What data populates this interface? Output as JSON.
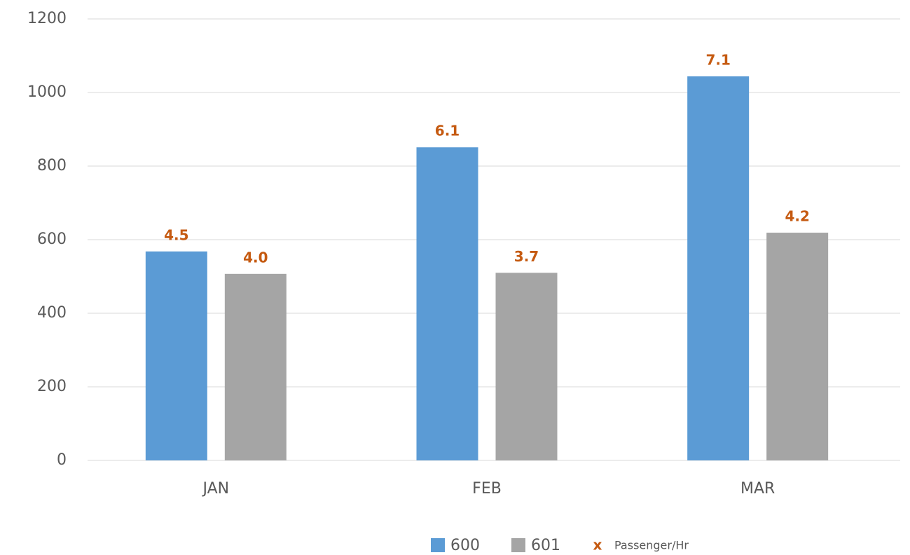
{
  "chart_data": {
    "type": "bar",
    "categories": [
      "JAN",
      "FEB",
      "MAR"
    ],
    "series": [
      {
        "name": "600",
        "color": "#5b9bd5",
        "values": [
          568,
          851,
          1044
        ],
        "rates": [
          4.5,
          6.1,
          7.1
        ],
        "rate_labels": [
          "4.5",
          "6.1",
          "7.1"
        ]
      },
      {
        "name": "601",
        "color": "#a5a5a5",
        "values": [
          507,
          510,
          619
        ],
        "rates": [
          4,
          3.7,
          4.2
        ],
        "rate_labels": [
          "4.0",
          "3.7",
          "4.2"
        ]
      }
    ],
    "rate_legend": {
      "name": "Passenger/Hr",
      "marker": "x",
      "color": "#c55a11"
    },
    "ylim": [
      0,
      1200
    ],
    "yticks": [
      0,
      200,
      400,
      600,
      800,
      1000,
      1200
    ],
    "grid": true
  }
}
